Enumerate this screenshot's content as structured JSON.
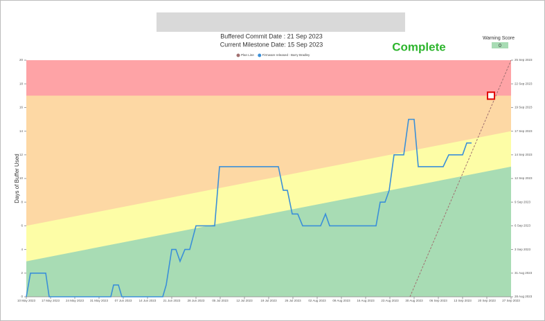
{
  "chart_data": {
    "type": "line",
    "subtitle_lines": [
      "Buffered Commit Date : 21 Sep 2023",
      "Current Milestone Date: 15 Sep 2023"
    ],
    "status": "Complete",
    "warning_score_label": "Warning Score",
    "warning_score": 0,
    "ylabel": "Days of Buffer Used",
    "xlim": [
      0,
      140
    ],
    "xticks": [
      {
        "value": 0,
        "label": "10 May 2023"
      },
      {
        "value": 7,
        "label": "17 May 2023"
      },
      {
        "value": 14,
        "label": "24 May 2023"
      },
      {
        "value": 21,
        "label": "31 May 2023"
      },
      {
        "value": 28,
        "label": "07 Jun 2023"
      },
      {
        "value": 35,
        "label": "14 Jun 2023"
      },
      {
        "value": 42,
        "label": "21 Jun 2023"
      },
      {
        "value": 49,
        "label": "28 Jun 2023"
      },
      {
        "value": 56,
        "label": "05 Jul 2023"
      },
      {
        "value": 63,
        "label": "12 Jul 2023"
      },
      {
        "value": 70,
        "label": "19 Jul 2023"
      },
      {
        "value": 77,
        "label": "26 Jul 2023"
      },
      {
        "value": 84,
        "label": "02 Aug 2023"
      },
      {
        "value": 91,
        "label": "09 Aug 2023"
      },
      {
        "value": 98,
        "label": "16 Aug 2023"
      },
      {
        "value": 105,
        "label": "23 Aug 2023"
      },
      {
        "value": 112,
        "label": "30 Aug 2023"
      },
      {
        "value": 119,
        "label": "06 Sep 2023"
      },
      {
        "value": 126,
        "label": "13 Sep 2023"
      },
      {
        "value": 133,
        "label": "20 Sep 2023"
      },
      {
        "value": 140,
        "label": "27 Sep 2023"
      }
    ],
    "ylim": [
      0,
      20
    ],
    "yticks": [
      0,
      2,
      4,
      6,
      8,
      10,
      12,
      14,
      16,
      18,
      20
    ],
    "y2lim": [
      0,
      20
    ],
    "y2ticks": [
      {
        "value": 0,
        "label": "28 Aug 2023"
      },
      {
        "value": 2,
        "label": "31 Aug 2023"
      },
      {
        "value": 4,
        "label": "3 Sep 2023"
      },
      {
        "value": 6,
        "label": "6 Sep 2023"
      },
      {
        "value": 8,
        "label": "9 Sep 2023"
      },
      {
        "value": 10,
        "label": "12 Sep 2023"
      },
      {
        "value": 12,
        "label": "14 Sep 2023"
      },
      {
        "value": 14,
        "label": "17 Sep 2023"
      },
      {
        "value": 16,
        "label": "19 Sep 2023"
      },
      {
        "value": 18,
        "label": "22 Sep 2023"
      },
      {
        "value": 20,
        "label": "25 Sep 2023"
      }
    ],
    "zones": [
      {
        "color": "#fea3a6",
        "upper": [
          20,
          20
        ]
      },
      {
        "color": "#fdd8a4",
        "upper": [
          17,
          17
        ]
      },
      {
        "color": "#fdfda6",
        "upper": [
          6,
          14
        ]
      },
      {
        "color": "#a8dcb4",
        "upper": [
          3,
          11
        ]
      }
    ],
    "series": [
      {
        "name": "Plan Line",
        "color": "#a07070",
        "dashed": true,
        "x": [
          110.8,
          140
        ],
        "values": [
          0,
          20
        ]
      },
      {
        "name": "Firmware released - Barry Bradley",
        "color": "#3a8fd8",
        "dashed": false,
        "x": [
          0,
          1.2,
          5.6,
          6.6,
          24.4,
          25.2,
          26.6,
          27.6,
          39.4,
          40.4,
          42,
          43.2,
          44.4,
          45.8,
          47.2,
          49,
          54.4,
          55.8,
          72.8,
          74.2,
          75.4,
          76.8,
          78.4,
          79.8,
          85,
          86.4,
          87.6,
          101,
          102.2,
          103.6,
          104.8,
          106.2,
          109,
          110.4,
          112,
          113.2,
          120.4,
          122,
          126,
          127.2,
          128.6
        ],
        "values": [
          0,
          2,
          2,
          0,
          0,
          1,
          1,
          0,
          0,
          1,
          4,
          4,
          3,
          4,
          4,
          6,
          6,
          11,
          11,
          9,
          9,
          7,
          7,
          6,
          6,
          7,
          6,
          6,
          8,
          8,
          9,
          12,
          12,
          15,
          15,
          11,
          11,
          12,
          12,
          13,
          13
        ]
      }
    ],
    "marker": {
      "color": "#e00000",
      "x": 134.2,
      "y": 17
    }
  }
}
